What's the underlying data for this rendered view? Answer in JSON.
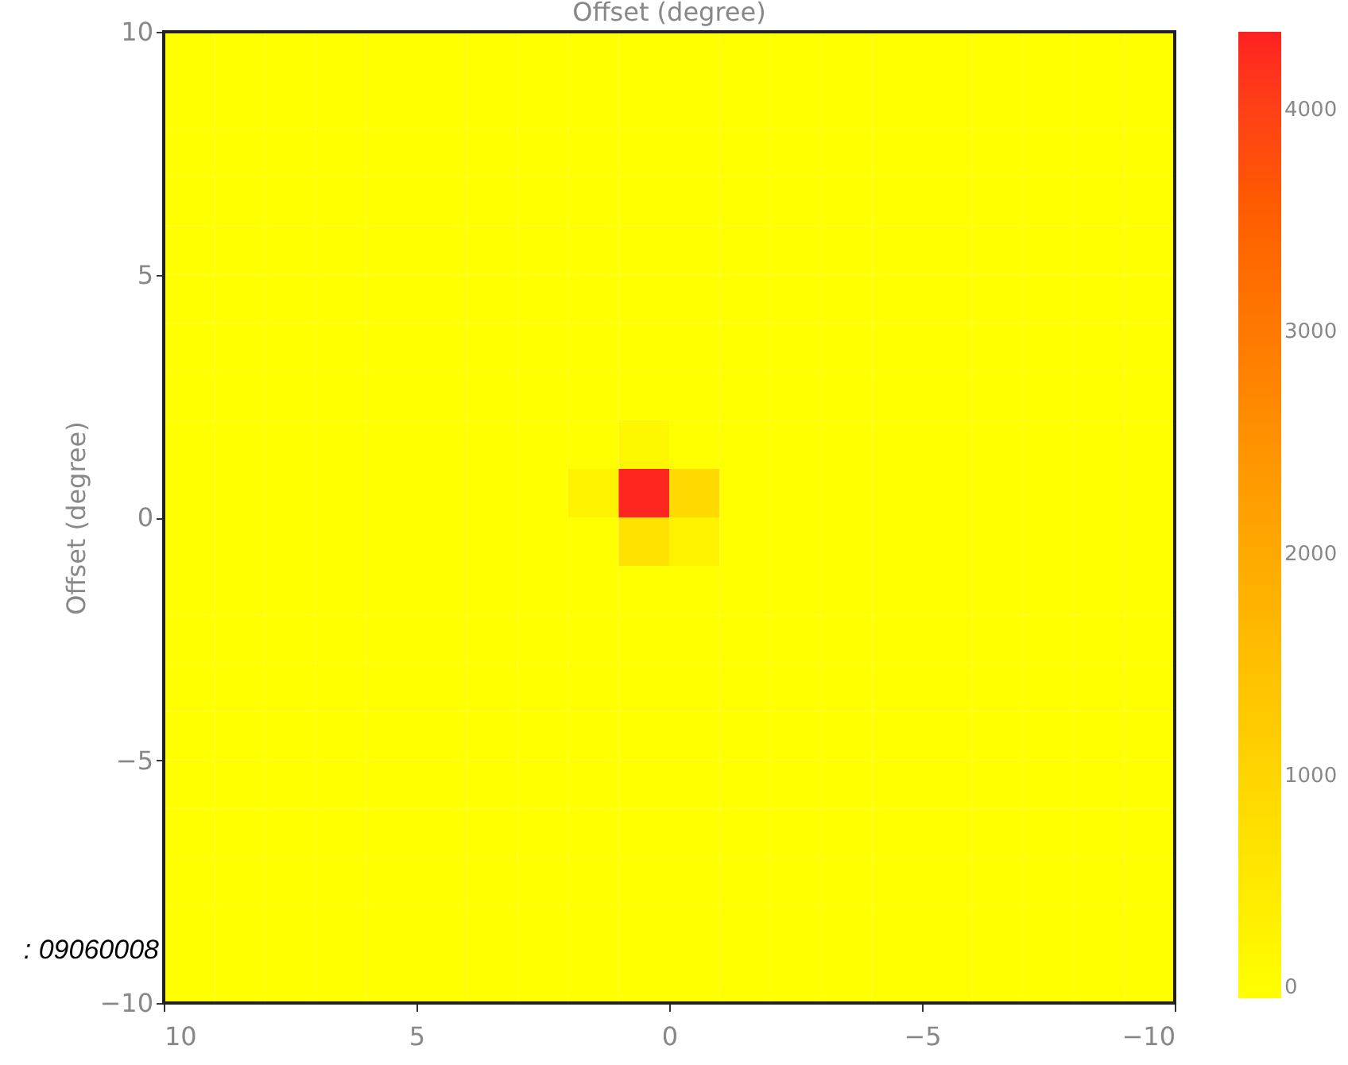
{
  "chart_data": {
    "type": "heatmap",
    "xlabel": "Offset (degree)",
    "ylabel": "Offset (degree)",
    "annotations": [
      ": 09060008"
    ],
    "xlim": [
      10,
      -10
    ],
    "xticks": [
      10,
      5,
      0,
      {
        "value": -5,
        "label": "−5"
      },
      {
        "value": -10,
        "label": "−10"
      }
    ],
    "ylim": [
      -10,
      10
    ],
    "yticks": [
      {
        "value": -10,
        "label": "−10"
      },
      {
        "value": -5,
        "label": "−5"
      },
      0,
      5,
      10
    ],
    "clim": [
      0,
      4350
    ],
    "cticks": [
      0,
      1000,
      2000,
      3000,
      4000
    ],
    "cells": [
      [
        0,
        0,
        0,
        0,
        0,
        0,
        0,
        0,
        0,
        0,
        0,
        0,
        0,
        0,
        0,
        0,
        0,
        0,
        0,
        0
      ],
      [
        0,
        0,
        0,
        0,
        0,
        0,
        0,
        0,
        0,
        0,
        0,
        0,
        0,
        0,
        0,
        0,
        0,
        0,
        0,
        0
      ],
      [
        0,
        0,
        0,
        0,
        0,
        0,
        0,
        0,
        0,
        0,
        0,
        0,
        0,
        0,
        0,
        0,
        0,
        0,
        0,
        0
      ],
      [
        0,
        0,
        0,
        0,
        0,
        0,
        0,
        0,
        0,
        0,
        0,
        0,
        0,
        0,
        0,
        0,
        0,
        0,
        0,
        0
      ],
      [
        0,
        0,
        0,
        0,
        0,
        0,
        0,
        0,
        0,
        0,
        0,
        0,
        0,
        0,
        0,
        0,
        0,
        0,
        0,
        0
      ],
      [
        0,
        0,
        0,
        0,
        0,
        0,
        0,
        0,
        0,
        0,
        0,
        0,
        0,
        0,
        0,
        0,
        0,
        0,
        0,
        0
      ],
      [
        0,
        0,
        0,
        0,
        0,
        0,
        0,
        0,
        0,
        0,
        0,
        0,
        0,
        0,
        0,
        0,
        0,
        0,
        0,
        0
      ],
      [
        0,
        0,
        0,
        0,
        0,
        0,
        0,
        0,
        0,
        0,
        0,
        0,
        0,
        0,
        0,
        0,
        0,
        0,
        0,
        0
      ],
      [
        0,
        0,
        0,
        0,
        0,
        0,
        0,
        0,
        0,
        200,
        0,
        0,
        0,
        0,
        0,
        0,
        0,
        0,
        0,
        0
      ],
      [
        0,
        0,
        0,
        0,
        0,
        0,
        0,
        0,
        300,
        4300,
        900,
        0,
        0,
        0,
        0,
        0,
        0,
        0,
        0,
        0
      ],
      [
        0,
        0,
        0,
        0,
        0,
        0,
        0,
        0,
        0,
        700,
        300,
        0,
        0,
        0,
        0,
        0,
        0,
        0,
        0,
        0
      ],
      [
        0,
        0,
        0,
        0,
        0,
        0,
        0,
        0,
        0,
        0,
        0,
        0,
        0,
        0,
        0,
        0,
        0,
        0,
        0,
        0
      ],
      [
        0,
        0,
        0,
        0,
        0,
        0,
        0,
        0,
        0,
        0,
        0,
        0,
        0,
        0,
        0,
        0,
        0,
        0,
        0,
        0
      ],
      [
        0,
        0,
        0,
        0,
        0,
        0,
        0,
        0,
        0,
        0,
        0,
        0,
        0,
        0,
        0,
        0,
        0,
        0,
        0,
        0
      ],
      [
        0,
        0,
        0,
        0,
        0,
        0,
        0,
        0,
        0,
        0,
        0,
        0,
        0,
        0,
        0,
        0,
        0,
        0,
        0,
        0
      ],
      [
        0,
        0,
        0,
        0,
        0,
        0,
        0,
        0,
        0,
        0,
        0,
        0,
        0,
        0,
        0,
        0,
        0,
        0,
        0,
        0
      ],
      [
        0,
        0,
        0,
        0,
        0,
        0,
        0,
        0,
        0,
        0,
        0,
        0,
        0,
        0,
        0,
        0,
        0,
        0,
        0,
        0
      ],
      [
        0,
        0,
        0,
        0,
        0,
        0,
        0,
        0,
        0,
        0,
        0,
        0,
        0,
        0,
        0,
        0,
        0,
        0,
        0,
        0
      ],
      [
        0,
        0,
        0,
        0,
        0,
        0,
        0,
        0,
        0,
        0,
        0,
        0,
        0,
        0,
        0,
        0,
        0,
        0,
        0,
        0
      ],
      [
        0,
        0,
        0,
        0,
        0,
        0,
        0,
        0,
        0,
        0,
        0,
        0,
        0,
        0,
        0,
        0,
        0,
        0,
        0,
        0
      ]
    ]
  }
}
